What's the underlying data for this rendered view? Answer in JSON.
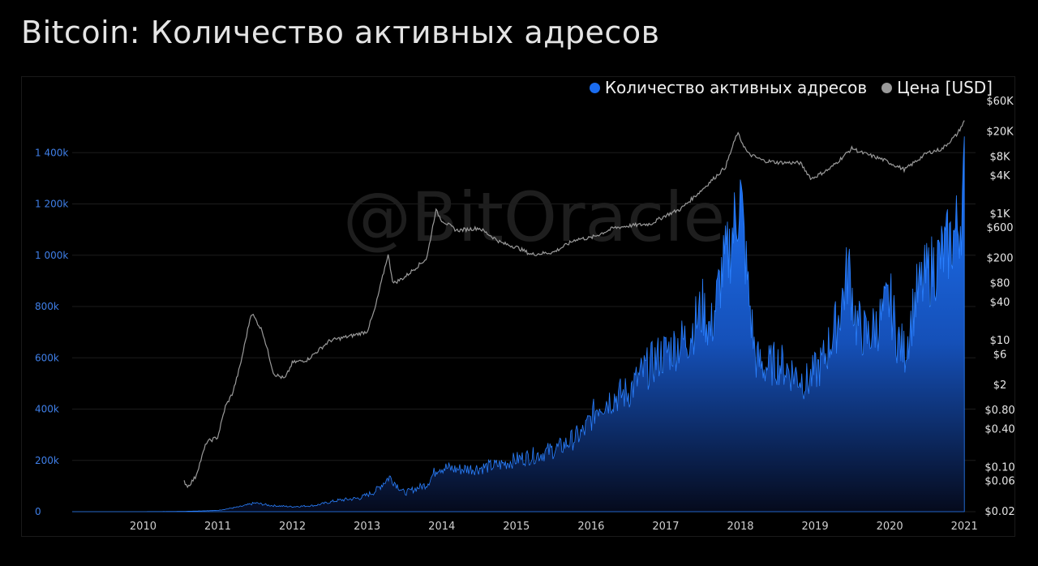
{
  "title": "Bitcoin: Количество активных адресов",
  "watermark": "@BitOracle",
  "legend": [
    {
      "label": "Количество активных адресов",
      "color": "#1a6cf0"
    },
    {
      "label": "Цена [USD]",
      "color": "#9a9a9a"
    }
  ],
  "chart_data": {
    "type": "area",
    "grid": true,
    "legend_position": "top-right",
    "x_ticks": [
      "2010",
      "2011",
      "2012",
      "2013",
      "2014",
      "2015",
      "2016",
      "2017",
      "2018",
      "2019",
      "2020",
      "2021"
    ],
    "y_left_ticks": [
      "0",
      "200k",
      "400k",
      "600k",
      "800k",
      "1 000k",
      "1 200k",
      "1 400k"
    ],
    "y_left_values": [
      0,
      200000,
      400000,
      600000,
      800000,
      1000000,
      1200000,
      1400000
    ],
    "y_right_ticks": [
      "$0.02",
      "$0.06",
      "$0.10",
      "$0.40",
      "$0.80",
      "$2",
      "$6",
      "$10",
      "$40",
      "$80",
      "$200",
      "$600",
      "$1K",
      "$4K",
      "$8K",
      "$20K",
      "$60K"
    ],
    "y_right_values": [
      0.02,
      0.06,
      0.1,
      0.4,
      0.8,
      2,
      6,
      10,
      40,
      80,
      200,
      600,
      1000,
      4000,
      8000,
      20000,
      60000
    ],
    "x_range": [
      2009.05,
      2021.15
    ],
    "y_left_range": [
      0,
      1600000
    ],
    "y_right_range": [
      0.02,
      60000
    ],
    "y_right_scale": "log",
    "series": [
      {
        "name": "Количество активных адресов",
        "axis": "left",
        "x": [
          2009.05,
          2010.0,
          2010.5,
          2011.0,
          2011.3,
          2011.5,
          2011.7,
          2012.0,
          2012.3,
          2012.6,
          2012.9,
          2013.1,
          2013.3,
          2013.5,
          2013.8,
          2013.95,
          2014.2,
          2014.5,
          2014.8,
          2015.0,
          2015.3,
          2015.6,
          2015.9,
          2016.1,
          2016.3,
          2016.5,
          2016.7,
          2016.9,
          2017.1,
          2017.3,
          2017.5,
          2017.6,
          2017.75,
          2017.85,
          2017.95,
          2018.0,
          2018.1,
          2018.2,
          2018.3,
          2018.5,
          2018.7,
          2018.9,
          2019.1,
          2019.3,
          2019.45,
          2019.55,
          2019.7,
          2019.9,
          2020.0,
          2020.1,
          2020.2,
          2020.35,
          2020.5,
          2020.7,
          2020.85,
          2020.95,
          2021.0
        ],
        "values": [
          0,
          0,
          1000,
          5000,
          20000,
          35000,
          25000,
          20000,
          25000,
          45000,
          55000,
          80000,
          140000,
          75000,
          110000,
          180000,
          170000,
          175000,
          190000,
          210000,
          230000,
          260000,
          320000,
          430000,
          460000,
          480000,
          560000,
          620000,
          660000,
          700000,
          820000,
          720000,
          960000,
          1050000,
          1200000,
          1280000,
          900000,
          620000,
          580000,
          600000,
          560000,
          520000,
          600000,
          760000,
          980000,
          760000,
          700000,
          780000,
          860000,
          700000,
          640000,
          860000,
          950000,
          1030000,
          1100000,
          1180000,
          1340000
        ]
      },
      {
        "name": "Цена [USD]",
        "axis": "right",
        "x": [
          2010.55,
          2010.6,
          2010.7,
          2010.85,
          2011.0,
          2011.1,
          2011.2,
          2011.3,
          2011.45,
          2011.6,
          2011.75,
          2011.9,
          2012.0,
          2012.2,
          2012.5,
          2012.8,
          2013.0,
          2013.1,
          2013.28,
          2013.35,
          2013.5,
          2013.8,
          2013.92,
          2014.0,
          2014.2,
          2014.5,
          2014.8,
          2015.0,
          2015.2,
          2015.5,
          2015.8,
          2016.0,
          2016.3,
          2016.5,
          2016.8,
          2017.0,
          2017.2,
          2017.5,
          2017.8,
          2017.96,
          2018.1,
          2018.3,
          2018.5,
          2018.8,
          2018.95,
          2019.2,
          2019.5,
          2019.6,
          2019.9,
          2020.2,
          2020.5,
          2020.7,
          2020.9,
          2021.0
        ],
        "values": [
          0.06,
          0.05,
          0.07,
          0.25,
          0.3,
          0.9,
          1.5,
          4,
          28,
          14,
          3,
          2.5,
          4.5,
          5,
          10,
          12,
          14,
          30,
          230,
          80,
          100,
          200,
          1150,
          800,
          550,
          600,
          350,
          300,
          230,
          250,
          400,
          420,
          600,
          650,
          700,
          950,
          1200,
          2500,
          5500,
          19000,
          9000,
          7000,
          6500,
          6400,
          3600,
          5200,
          11000,
          9500,
          7300,
          5000,
          9200,
          10600,
          18000,
          29000
        ]
      }
    ]
  }
}
